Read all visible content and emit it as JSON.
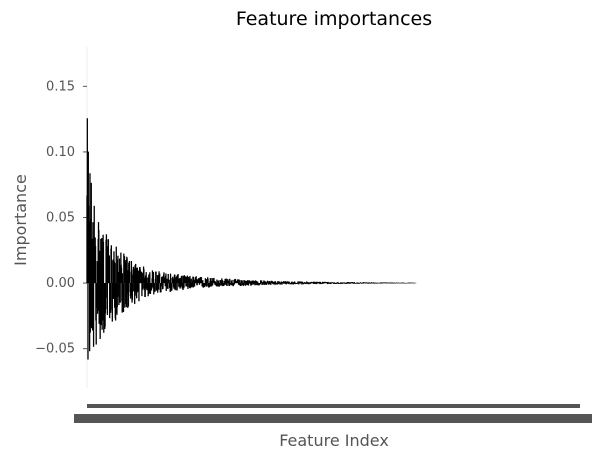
{
  "chart_data": {
    "type": "bar",
    "title": "Feature importances",
    "xlabel": "Feature Index",
    "ylabel": "Importance",
    "ylim": [
      -0.08,
      0.18
    ],
    "yticks": [
      -0.05,
      0.0,
      0.05,
      0.1,
      0.15
    ],
    "ytick_labels": [
      "−0.05",
      "0.00",
      "0.05",
      "0.10",
      "0.15"
    ],
    "x_count": 1500,
    "x_tick_labels_legible": false,
    "grid": false,
    "bar_color": "#000000",
    "envelope": {
      "index": [
        0,
        10,
        25,
        50,
        100,
        150,
        200,
        300,
        400,
        500,
        600,
        800,
        1000
      ],
      "upper": [
        0.13,
        0.09,
        0.06,
        0.04,
        0.025,
        0.015,
        0.01,
        0.006,
        0.004,
        0.0025,
        0.0015,
        0.0008,
        0.0003
      ],
      "lower": [
        -0.065,
        -0.06,
        -0.05,
        -0.04,
        -0.025,
        -0.015,
        -0.009,
        -0.005,
        -0.003,
        -0.002,
        -0.0012,
        -0.0006,
        -0.0002
      ]
    }
  },
  "colors": {
    "axis": "#555555",
    "text": "#555555",
    "title": "#000000"
  }
}
